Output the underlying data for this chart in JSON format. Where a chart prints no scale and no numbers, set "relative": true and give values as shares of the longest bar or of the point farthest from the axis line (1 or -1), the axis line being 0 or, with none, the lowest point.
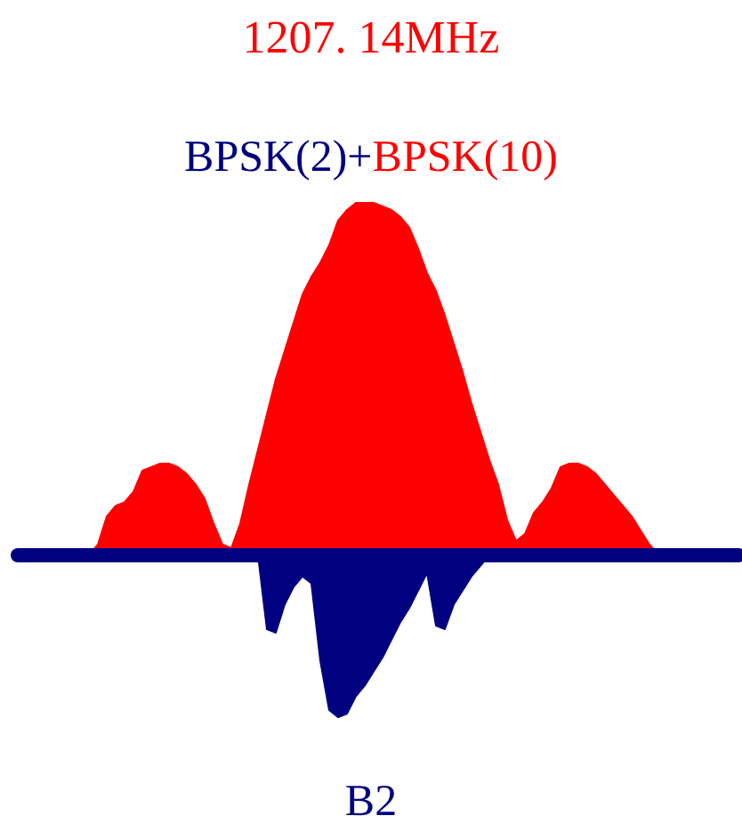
{
  "chart_data": {
    "type": "area",
    "relative": true,
    "title": "1207. 14MHz",
    "xlabel": "B2",
    "annotations": [
      "+"
    ],
    "legend": "top",
    "categories": [
      null,
      null,
      null,
      null,
      null,
      null,
      null,
      null,
      null,
      null,
      null,
      null,
      null,
      null,
      null,
      null,
      null,
      null,
      null,
      null,
      null,
      null,
      null,
      null,
      null,
      null,
      null,
      null,
      null,
      null,
      null,
      null,
      null,
      null,
      null,
      null,
      null,
      null,
      null,
      null,
      null,
      null,
      null,
      null,
      null,
      null,
      null,
      null,
      null,
      null,
      null,
      null,
      null,
      null,
      null,
      null,
      null,
      null,
      null,
      null,
      null,
      null,
      null,
      null,
      null,
      null,
      null,
      null,
      null,
      null,
      null,
      null,
      null,
      null,
      null,
      null,
      null,
      null,
      null,
      null,
      null,
      null
    ],
    "series": [
      {
        "name": "BPSK(2)",
        "color": "#000080",
        "values": [
          0,
          0,
          0,
          0,
          0,
          0,
          0,
          0,
          0,
          0,
          0,
          0,
          0,
          0,
          0,
          0,
          0,
          0,
          0,
          0,
          0,
          0,
          0,
          0,
          0,
          0,
          0,
          0,
          -0.21,
          -0.22,
          -0.14,
          -0.09,
          -0.06,
          -0.08,
          -0.3,
          -0.44,
          -0.46,
          -0.45,
          -0.4,
          -0.37,
          -0.33,
          -0.29,
          -0.24,
          -0.19,
          -0.15,
          -0.1,
          -0.05,
          -0.2,
          -0.21,
          -0.14,
          -0.1,
          -0.06,
          -0.03,
          0,
          0,
          0,
          0,
          0,
          0,
          0,
          0,
          0,
          0,
          0,
          0,
          0,
          0,
          0,
          0,
          0,
          0,
          0,
          0,
          0,
          0,
          0,
          0,
          0,
          0,
          0,
          0,
          0
        ]
      },
      {
        "name": "BPSK(10)",
        "color": "#ff0000",
        "values": [
          0,
          0,
          0,
          0,
          0,
          0,
          0,
          0,
          0,
          0.03,
          0.11,
          0.14,
          0.15,
          0.18,
          0.24,
          0.25,
          0.26,
          0.26,
          0.25,
          0.23,
          0.2,
          0.16,
          0.09,
          0.03,
          0.02,
          0.09,
          0.2,
          0.3,
          0.4,
          0.5,
          0.58,
          0.66,
          0.74,
          0.79,
          0.83,
          0.88,
          0.95,
          0.98,
          1,
          1,
          1,
          0.99,
          0.98,
          0.96,
          0.93,
          0.87,
          0.8,
          0.75,
          0.68,
          0.6,
          0.52,
          0.43,
          0.35,
          0.27,
          0.2,
          0.1,
          0.04,
          0.06,
          0.12,
          0.15,
          0.19,
          0.25,
          0.26,
          0.26,
          0.25,
          0.23,
          0.2,
          0.17,
          0.14,
          0.11,
          0.07,
          0.03,
          0,
          0,
          0,
          0,
          0,
          0,
          0,
          0,
          0,
          0
        ]
      }
    ]
  }
}
